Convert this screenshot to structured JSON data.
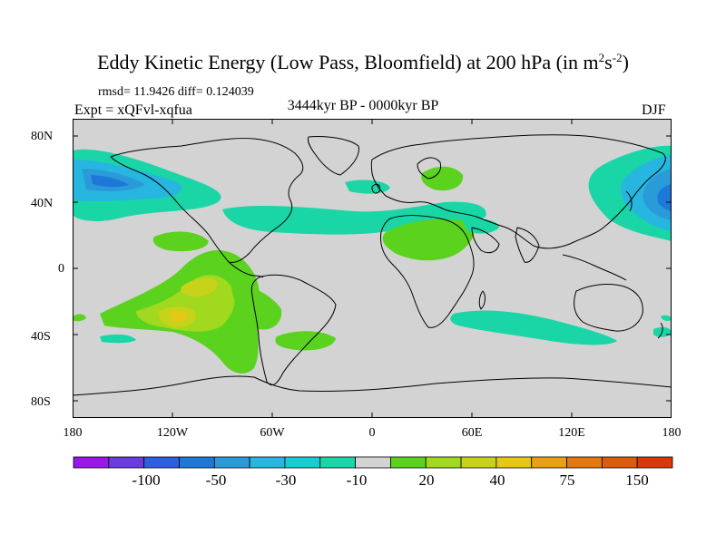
{
  "title": {
    "text": "Eddy Kinetic Energy (Low Pass, Bloomfield) at 200 hPa (in m",
    "exp1": "2",
    "mid": "s",
    "exp2": "-2",
    "end": ")"
  },
  "stats": "rmsd= 11.9426 diff= 0.124039",
  "experiment": "Expt = xQFvl-xqfua",
  "period": "3444kyr BP - 0000kyr BP",
  "season": "DJF",
  "axes": {
    "y_ticks": [
      "80N",
      "40N",
      "0",
      "40S",
      "80S"
    ],
    "x_ticks": [
      "180",
      "120W",
      "60W",
      "0",
      "60E",
      "120E",
      "180"
    ]
  },
  "colorbar": {
    "colors": [
      "#9b17e8",
      "#6a3be0",
      "#2d5fe0",
      "#1d78d8",
      "#2b9ad8",
      "#27b6e0",
      "#18cdd2",
      "#1ad6a6",
      "#d3d3d3",
      "#5bd21e",
      "#a1d91e",
      "#c7d21a",
      "#e6c714",
      "#e7a112",
      "#e3790f",
      "#de5a0c",
      "#d9380a"
    ],
    "labels": [
      "-100",
      "-50",
      "-30",
      "-10",
      "20",
      "40",
      "75",
      "150"
    ]
  },
  "map_colors": {
    "background": "#d3d3d3",
    "coast": "#000000"
  }
}
